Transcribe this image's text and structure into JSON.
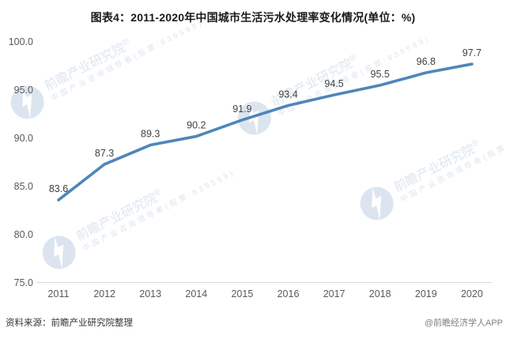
{
  "title": "图表4：2011-2020年中国城市生活污水处理率变化情况(单位：%)",
  "chart_data": {
    "type": "line",
    "title": "图表4：2011-2020年中国城市生活污水处理率变化情况(单位：%)",
    "categories": [
      "2011",
      "2012",
      "2013",
      "2014",
      "2015",
      "2016",
      "2017",
      "2018",
      "2019",
      "2020"
    ],
    "values": [
      83.6,
      87.3,
      89.3,
      90.2,
      91.9,
      93.4,
      94.5,
      95.5,
      96.8,
      97.7
    ],
    "series_name": "城市生活污水处理率",
    "unit": "%",
    "xlabel": "",
    "ylabel": "",
    "ylim": [
      75,
      100
    ],
    "yticks": [
      100,
      95,
      90,
      85,
      80,
      75
    ],
    "ytick_format_decimals": 1,
    "grid": false,
    "legend": "none",
    "data_labels_shown": true,
    "line_color": "#4e86ba",
    "data_label_color": "#404040",
    "axis_text_color": "#595959",
    "axis_line_color": "#d9d9d9"
  },
  "footer": {
    "source": "资料来源：前瞻产业研究院整理",
    "credit": "@前瞻经济学人APP"
  },
  "watermark": {
    "brand": "前瞻产业研究院",
    "reg": "®",
    "tagline": "中国产业咨询领导者(股票:839599)"
  }
}
